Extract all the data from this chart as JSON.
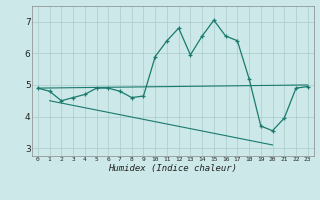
{
  "xlabel": "Humidex (Indice chaleur)",
  "x": [
    0,
    1,
    2,
    3,
    4,
    5,
    6,
    7,
    8,
    9,
    10,
    11,
    12,
    13,
    14,
    15,
    16,
    17,
    18,
    19,
    20,
    21,
    22,
    23
  ],
  "line1": [
    4.9,
    4.8,
    4.5,
    4.6,
    4.7,
    4.9,
    4.9,
    4.8,
    4.6,
    4.65,
    5.9,
    6.4,
    6.8,
    5.95,
    6.55,
    7.05,
    6.55,
    6.4,
    5.2,
    3.7,
    3.55,
    3.95,
    4.9,
    4.95
  ],
  "line2_x": [
    0,
    23
  ],
  "line2_y": [
    4.9,
    5.0
  ],
  "line3_x": [
    1,
    20
  ],
  "line3_y": [
    4.5,
    3.1
  ],
  "color": "#1a7a6e",
  "bg_color": "#cce8e8",
  "grid_color": "#aacccc",
  "ylim": [
    2.75,
    7.5
  ],
  "xlim": [
    -0.5,
    23.5
  ],
  "yticks": [
    3,
    4,
    5,
    6,
    7
  ],
  "xticks": [
    0,
    1,
    2,
    3,
    4,
    5,
    6,
    7,
    8,
    9,
    10,
    11,
    12,
    13,
    14,
    15,
    16,
    17,
    18,
    19,
    20,
    21,
    22,
    23
  ]
}
